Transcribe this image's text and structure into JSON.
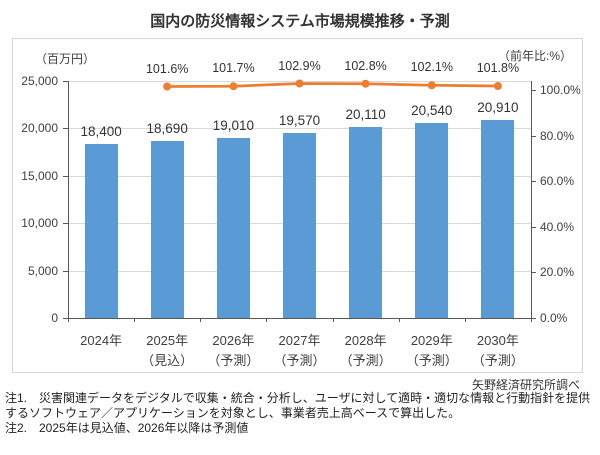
{
  "page": {
    "title": "国内の防災情報システム市場規模推移・予測"
  },
  "chart_data": {
    "type": "bar",
    "subtype": "bar+line-combo",
    "title": "国内の防災情報システム市場規模推移・予測",
    "categories": [
      "2024年",
      "2025年",
      "2026年",
      "2027年",
      "2028年",
      "2029年",
      "2030年"
    ],
    "category_sublabels": [
      "",
      "（見込）",
      "（予測）",
      "（予測）",
      "（予測）",
      "（予測）",
      "（予測）"
    ],
    "bars": {
      "values": [
        18400,
        18690,
        19010,
        19570,
        20110,
        20540,
        20910
      ],
      "labels": [
        "18,400",
        "18,690",
        "19,010",
        "19,570",
        "20,110",
        "20,540",
        "20,910"
      ],
      "color": "#5B9BD5",
      "axis": "left"
    },
    "line": {
      "values": [
        null,
        101.6,
        101.7,
        102.9,
        102.8,
        102.1,
        101.8
      ],
      "labels": [
        "",
        "101.6%",
        "101.7%",
        "102.9%",
        "102.8%",
        "102.1%",
        "101.8%"
      ],
      "color": "#ED7D31",
      "axis": "right"
    },
    "left_axis": {
      "title": "（百万円）",
      "min": 0,
      "max": 25000,
      "tick_values": [
        0,
        5000,
        10000,
        15000,
        20000,
        25000
      ],
      "tick_labels": [
        "0",
        "5,000",
        "10,000",
        "15,000",
        "20,000",
        "25,000"
      ]
    },
    "right_axis": {
      "title": "（前年比:%）",
      "min": 0,
      "max": 104,
      "tick_values": [
        0,
        20,
        40,
        60,
        80,
        100
      ],
      "tick_labels": [
        "0.0%",
        "20.0%",
        "40.0%",
        "60.0%",
        "80.0%",
        "100.0%"
      ]
    },
    "grid": true,
    "legend": "none"
  },
  "footer": {
    "source": "矢野経済研究所調べ",
    "note1": "注1.　災害関連データをデジタルで収集・統合・分析し、ユーザに対して適時・適切な情報と行動指針を提供するソフトウェア／アプリケーションを対象とし、事業者売上高ベースで算出した。",
    "note2": "注2.　2025年は見込値、2026年以降は予測値"
  },
  "colors": {
    "bar": "#5B9BD5",
    "line": "#ED7D31",
    "grid": "#D9D9D9",
    "axis": "#595959",
    "frame": "#D4D4D4",
    "text": "#404040"
  }
}
